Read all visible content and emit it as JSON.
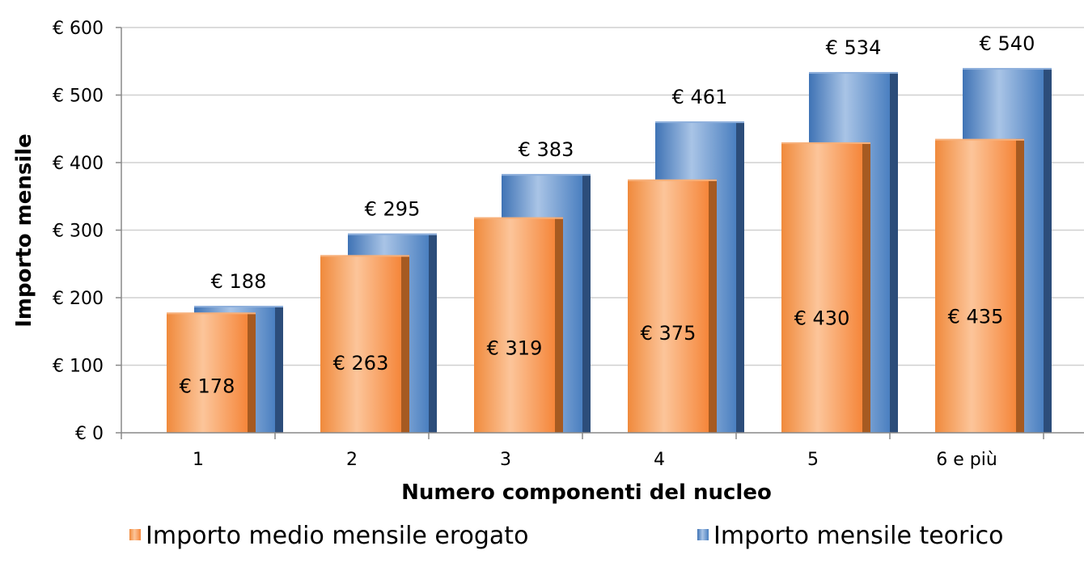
{
  "chart_data": {
    "type": "bar",
    "title": "",
    "xlabel": "Numero componenti del nucleo",
    "ylabel": "Importo mensile",
    "categories": [
      "1",
      "2",
      "3",
      "4",
      "5",
      "6 e più"
    ],
    "ylim": [
      0,
      600
    ],
    "yticks": [
      0,
      100,
      200,
      300,
      400,
      500,
      600
    ],
    "ytick_labels": [
      "€ 0",
      "€ 100",
      "€ 200",
      "€ 300",
      "€ 400",
      "€ 500",
      "€ 600"
    ],
    "grid": true,
    "legend_position": "bottom",
    "series": [
      {
        "name": "Importo medio mensile erogato",
        "values": [
          178,
          263,
          319,
          375,
          430,
          435
        ],
        "labels": [
          "€ 178",
          "€ 263",
          "€ 319",
          "€ 375",
          "€ 430",
          "€ 435"
        ],
        "color": "#f79646"
      },
      {
        "name": "Importo mensile teorico",
        "values": [
          188,
          295,
          383,
          461,
          534,
          540
        ],
        "labels": [
          "€ 188",
          "€ 295",
          "€ 383",
          "€ 461",
          "€ 534",
          "€ 540"
        ],
        "color": "#4f81bd"
      }
    ]
  }
}
